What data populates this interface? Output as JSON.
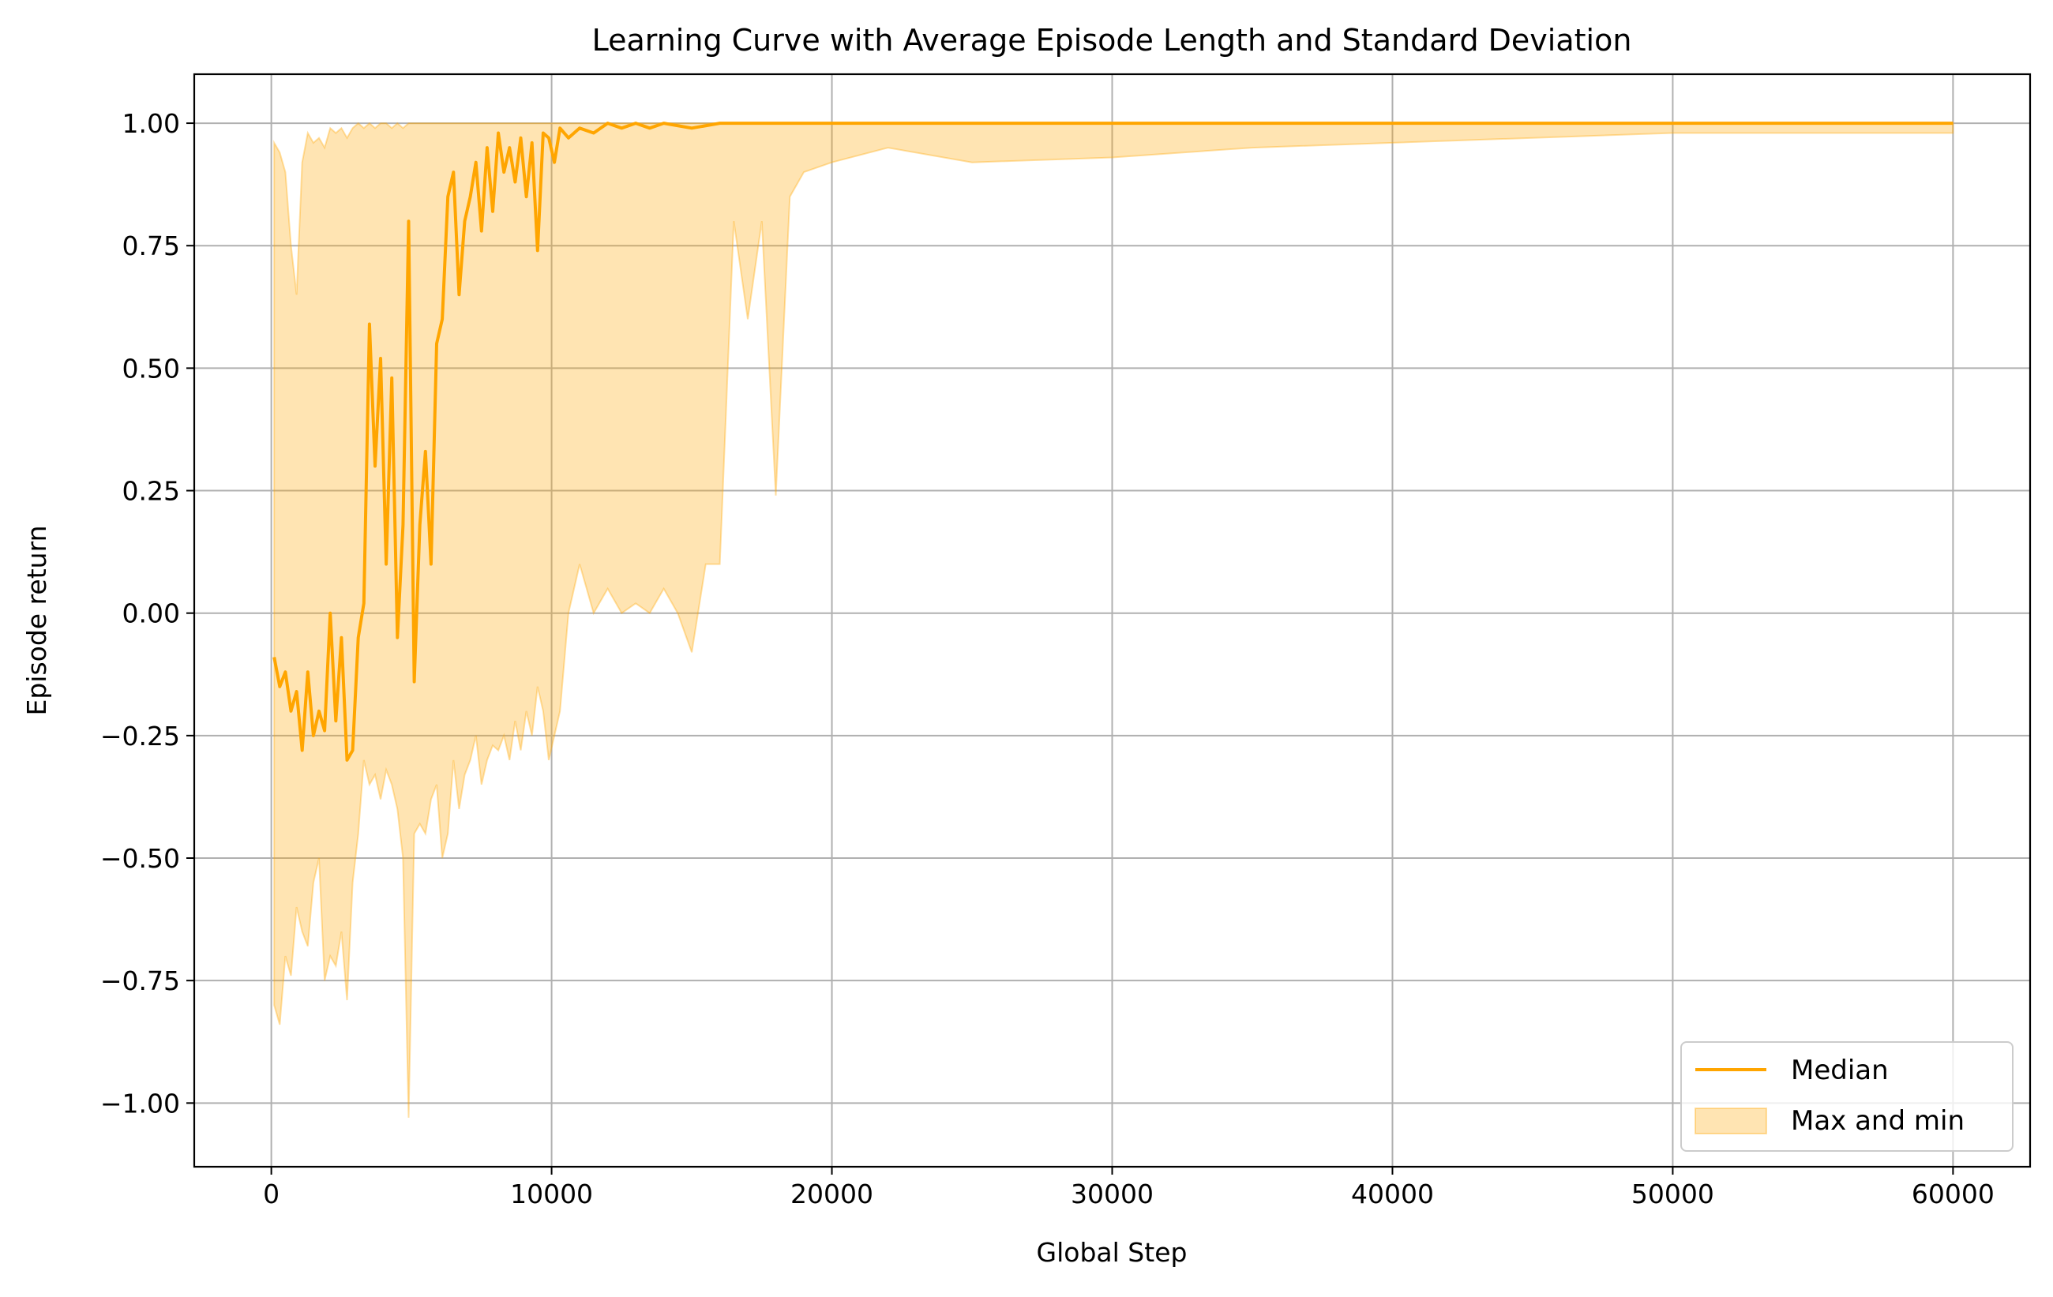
{
  "chart_data": {
    "type": "line",
    "title": "Learning Curve with Average Episode Length and Standard Deviation",
    "xlabel": "Global Step",
    "ylabel": "Episode return",
    "xlim": [
      -2750,
      62750
    ],
    "ylim": [
      -1.13,
      1.1
    ],
    "xticks": [
      0,
      10000,
      20000,
      30000,
      40000,
      50000,
      60000
    ],
    "xtick_labels": [
      "0",
      "10000",
      "20000",
      "30000",
      "40000",
      "50000",
      "60000"
    ],
    "yticks": [
      -1.0,
      -0.75,
      -0.5,
      -0.25,
      0.0,
      0.25,
      0.5,
      0.75,
      1.0
    ],
    "ytick_labels": [
      "−1.00",
      "−0.75",
      "−0.50",
      "−0.25",
      "0.00",
      "0.25",
      "0.50",
      "0.75",
      "1.00"
    ],
    "grid": true,
    "legend_position": "lower-right",
    "colors": {
      "median": "#ffa500",
      "band": "#ffa500"
    },
    "series": [
      {
        "name": "Median",
        "kind": "line",
        "x": [
          100,
          300,
          500,
          700,
          900,
          1100,
          1300,
          1500,
          1700,
          1900,
          2100,
          2300,
          2500,
          2700,
          2900,
          3100,
          3300,
          3500,
          3700,
          3900,
          4100,
          4300,
          4500,
          4700,
          4900,
          5100,
          5300,
          5500,
          5700,
          5900,
          6100,
          6300,
          6500,
          6700,
          6900,
          7100,
          7300,
          7500,
          7700,
          7900,
          8100,
          8300,
          8500,
          8700,
          8900,
          9100,
          9300,
          9500,
          9700,
          9900,
          10100,
          10300,
          10600,
          11000,
          11500,
          12000,
          12500,
          13000,
          13500,
          14000,
          15000,
          16000,
          17000,
          18000,
          20000,
          25000,
          30000,
          35000,
          40000,
          45000,
          50000,
          55000,
          60000
        ],
        "y": [
          -0.09,
          -0.15,
          -0.12,
          -0.2,
          -0.16,
          -0.28,
          -0.12,
          -0.25,
          -0.2,
          -0.24,
          0.0,
          -0.22,
          -0.05,
          -0.3,
          -0.28,
          -0.05,
          0.02,
          0.59,
          0.3,
          0.52,
          0.1,
          0.48,
          -0.05,
          0.18,
          0.8,
          -0.14,
          0.18,
          0.33,
          0.1,
          0.55,
          0.6,
          0.85,
          0.9,
          0.65,
          0.8,
          0.85,
          0.92,
          0.78,
          0.95,
          0.82,
          0.98,
          0.9,
          0.95,
          0.88,
          0.97,
          0.85,
          0.96,
          0.74,
          0.98,
          0.97,
          0.92,
          0.99,
          0.97,
          0.99,
          0.98,
          1.0,
          0.99,
          1.0,
          0.99,
          1.0,
          0.99,
          1.0,
          1.0,
          1.0,
          1.0,
          1.0,
          1.0,
          1.0,
          1.0,
          1.0,
          1.0,
          1.0,
          1.0
        ]
      },
      {
        "name": "Max and min",
        "kind": "band",
        "x": [
          100,
          300,
          500,
          700,
          900,
          1100,
          1300,
          1500,
          1700,
          1900,
          2100,
          2300,
          2500,
          2700,
          2900,
          3100,
          3300,
          3500,
          3700,
          3900,
          4100,
          4300,
          4500,
          4700,
          4900,
          5100,
          5300,
          5500,
          5700,
          5900,
          6100,
          6300,
          6500,
          6700,
          6900,
          7100,
          7300,
          7500,
          7700,
          7900,
          8100,
          8300,
          8500,
          8700,
          8900,
          9100,
          9300,
          9500,
          9700,
          9900,
          10100,
          10300,
          10600,
          11000,
          11500,
          12000,
          12500,
          13000,
          13500,
          14000,
          14500,
          15000,
          15500,
          16000,
          16500,
          17000,
          17500,
          18000,
          18500,
          19000,
          20000,
          22000,
          25000,
          30000,
          35000,
          40000,
          45000,
          50000,
          55000,
          60000
        ],
        "low": [
          -0.8,
          -0.84,
          -0.7,
          -0.74,
          -0.6,
          -0.65,
          -0.68,
          -0.55,
          -0.5,
          -0.75,
          -0.7,
          -0.72,
          -0.65,
          -0.79,
          -0.55,
          -0.45,
          -0.3,
          -0.35,
          -0.33,
          -0.38,
          -0.32,
          -0.35,
          -0.4,
          -0.5,
          -1.03,
          -0.45,
          -0.43,
          -0.45,
          -0.38,
          -0.35,
          -0.5,
          -0.45,
          -0.3,
          -0.4,
          -0.33,
          -0.3,
          -0.25,
          -0.35,
          -0.3,
          -0.27,
          -0.28,
          -0.25,
          -0.3,
          -0.22,
          -0.28,
          -0.2,
          -0.25,
          -0.15,
          -0.2,
          -0.3,
          -0.25,
          -0.2,
          0.0,
          0.1,
          0.0,
          0.05,
          0.0,
          0.02,
          0.0,
          0.05,
          0.0,
          -0.08,
          0.1,
          0.1,
          0.8,
          0.6,
          0.8,
          0.24,
          0.85,
          0.9,
          0.92,
          0.95,
          0.92,
          0.93,
          0.95,
          0.96,
          0.97,
          0.98,
          0.98,
          0.98
        ],
        "high": [
          0.96,
          0.94,
          0.9,
          0.75,
          0.65,
          0.92,
          0.98,
          0.96,
          0.97,
          0.95,
          0.99,
          0.98,
          0.99,
          0.97,
          0.99,
          1.0,
          0.99,
          1.0,
          0.99,
          1.0,
          1.0,
          0.99,
          1.0,
          0.99,
          1.0,
          1.0,
          1.0,
          1.0,
          1.0,
          1.0,
          1.0,
          1.0,
          1.0,
          1.0,
          1.0,
          1.0,
          1.0,
          1.0,
          1.0,
          1.0,
          1.0,
          1.0,
          1.0,
          1.0,
          1.0,
          1.0,
          1.0,
          1.0,
          1.0,
          1.0,
          1.0,
          1.0,
          1.0,
          1.0,
          1.0,
          1.0,
          1.0,
          1.0,
          1.0,
          1.0,
          1.0,
          1.0,
          1.0,
          1.0,
          1.0,
          1.0,
          1.0,
          1.0,
          1.0,
          1.0,
          1.0,
          1.0,
          1.0,
          1.0,
          1.0,
          1.0,
          1.0,
          1.0,
          1.0,
          1.0
        ]
      }
    ]
  }
}
